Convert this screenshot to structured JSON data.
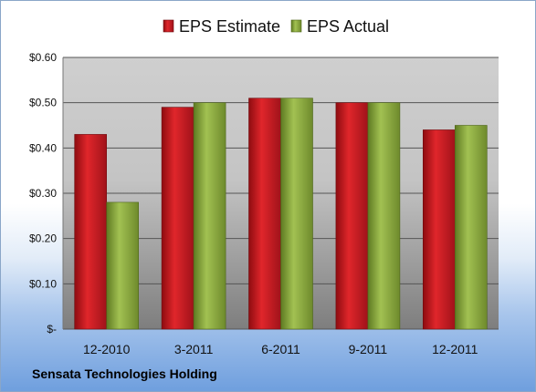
{
  "chart_data": {
    "type": "bar",
    "categories": [
      "12-2010",
      "3-2011",
      "6-2011",
      "9-2011",
      "12-2011"
    ],
    "series": [
      {
        "name": "EPS Estimate",
        "values": [
          0.43,
          0.49,
          0.51,
          0.5,
          0.44
        ],
        "color": "#c8161d"
      },
      {
        "name": "EPS Actual",
        "values": [
          0.28,
          0.5,
          0.51,
          0.5,
          0.45
        ],
        "color": "#8aab3c"
      }
    ],
    "ylim": [
      0,
      0.6
    ],
    "yticks": [
      {
        "value": 0.6,
        "label": "$0.60"
      },
      {
        "value": 0.5,
        "label": "$0.50"
      },
      {
        "value": 0.4,
        "label": "$0.40"
      },
      {
        "value": 0.3,
        "label": "$0.30"
      },
      {
        "value": 0.2,
        "label": "$0.20"
      },
      {
        "value": 0.1,
        "label": "$0.10"
      },
      {
        "value": 0.0,
        "label": "$-"
      }
    ],
    "grid": true,
    "legend_position": "top"
  },
  "footer": {
    "company": "Sensata Technologies Holding"
  }
}
